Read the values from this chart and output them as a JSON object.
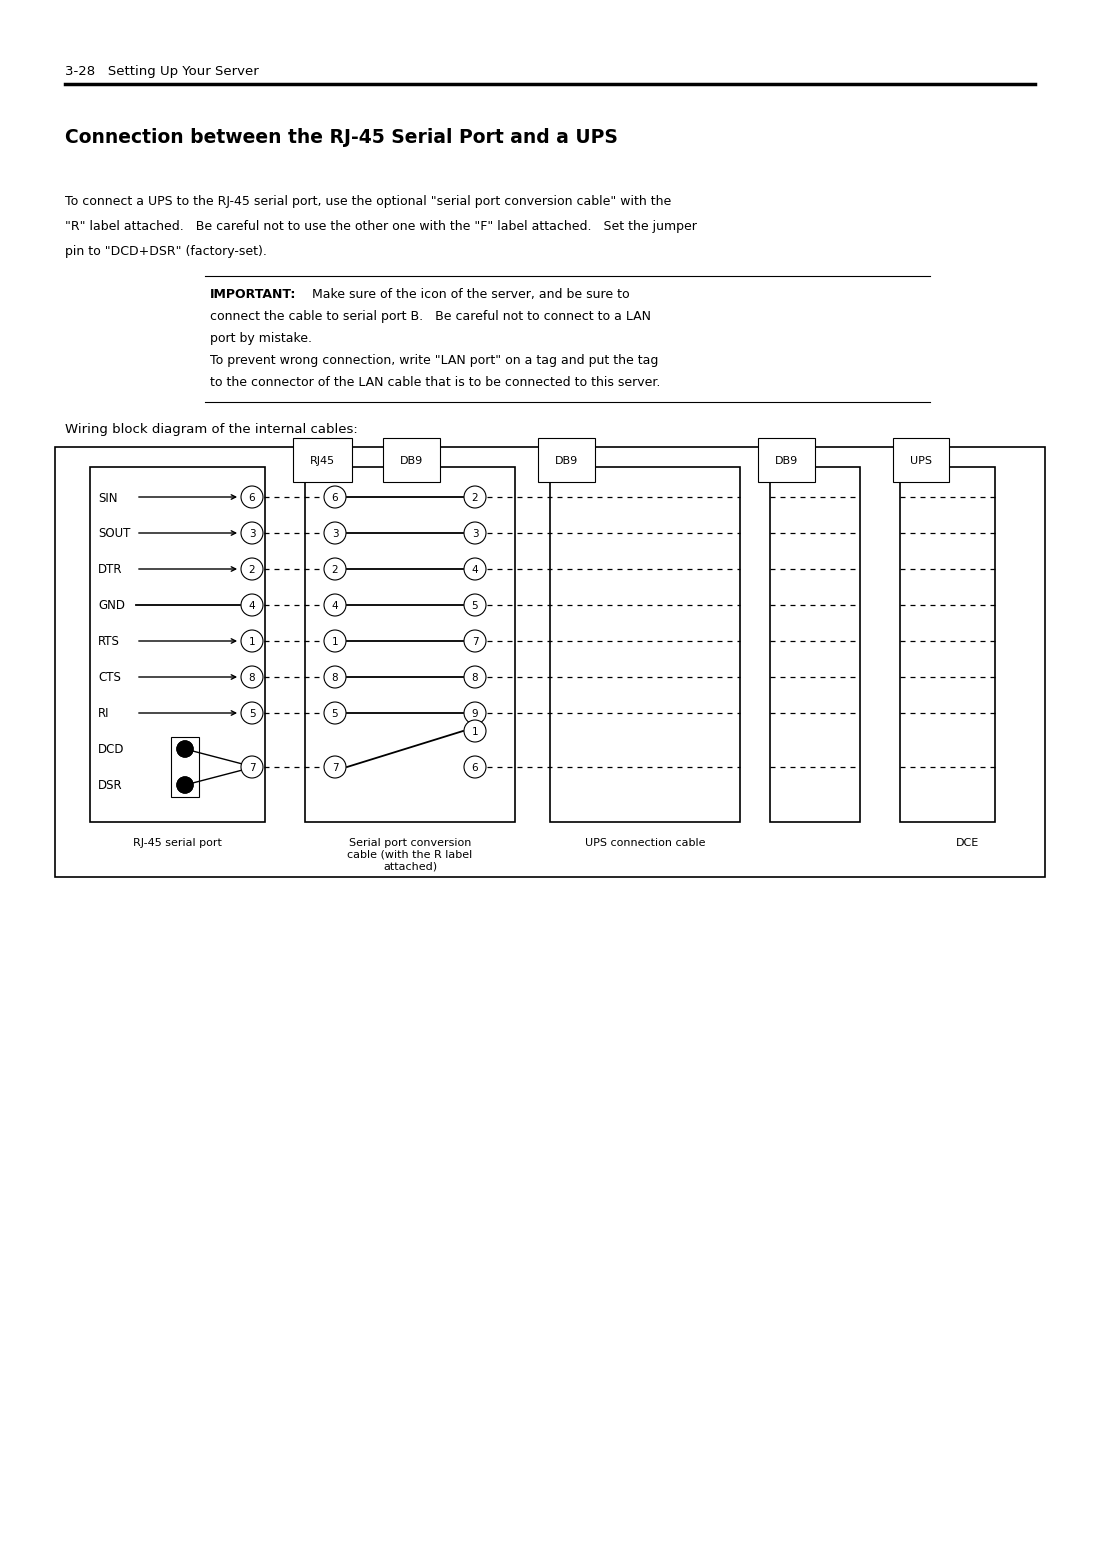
{
  "page_header": "3-28   Setting Up Your Server",
  "section_title": "Connection between the RJ-45 Serial Port and a UPS",
  "body_line1": "To connect a UPS to the RJ-45 serial port, use the optional \"serial port conversion cable\" with the",
  "body_line2": "\"R\" label attached.   Be careful not to use the other one with the \"F\" label attached.   Set the jumper",
  "body_line3": "pin to \"DCD+DSR\" (factory-set).",
  "imp_bold": "IMPORTANT:",
  "imp_line1_rest": " Make sure of the icon of the server, and be sure to",
  "imp_line2": "connect the cable to serial port B.   Be careful not to connect to a LAN",
  "imp_line3": "port by mistake.",
  "imp_line4": "To prevent wrong connection, write \"LAN port\" on a tag and put the tag",
  "imp_line5": "to the connector of the LAN cable that is to be connected to this server.",
  "wiring_label": "Wiring block diagram of the internal cables:",
  "rj45_signals": [
    "SIN",
    "SOUT",
    "DTR",
    "GND",
    "RTS",
    "CTS",
    "RI",
    "DCD",
    "DSR"
  ],
  "rj45_pins": [
    "6",
    "3",
    "2",
    "4",
    "1",
    "8",
    "5",
    "7",
    "7"
  ],
  "rj45_arrows": [
    "left",
    "right",
    "right",
    "none",
    "right",
    "left",
    "left",
    "dcd",
    "dsr"
  ],
  "db9_left_pins": [
    "6",
    "3",
    "2",
    "4",
    "1",
    "8",
    "5",
    "7"
  ],
  "db9_right_pins": [
    "2",
    "3",
    "4",
    "5",
    "7",
    "8",
    "9",
    "6"
  ],
  "caption_rj45": "RJ-45 serial port",
  "caption_conv": "Serial port conversion\ncable (with the R label\nattached)",
  "caption_ups": "UPS connection cable",
  "caption_dce": "DCE",
  "background_color": "#ffffff"
}
